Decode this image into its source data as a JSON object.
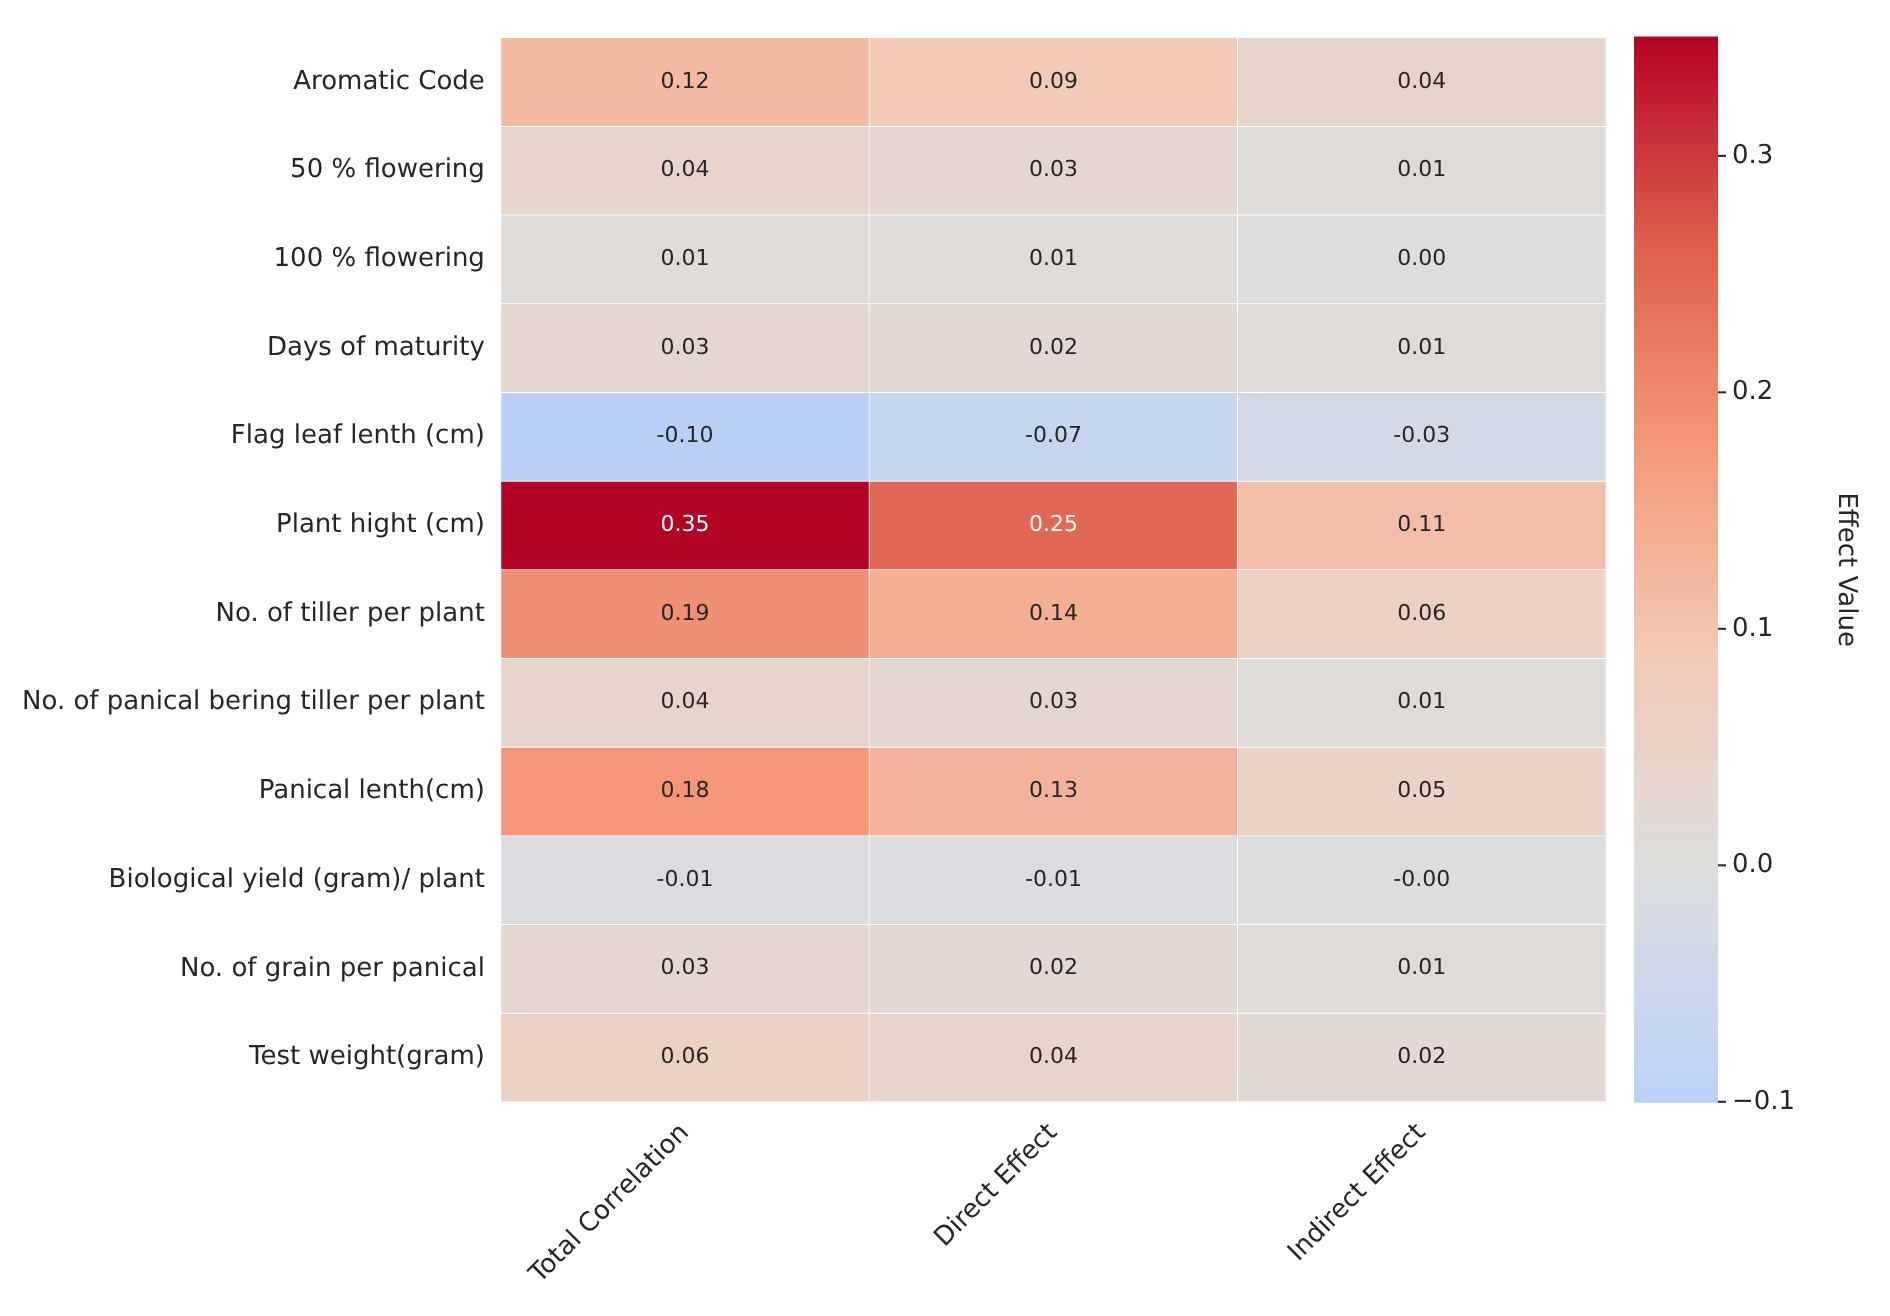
{
  "chart_data": {
    "type": "heatmap",
    "clabel": "Effect Value",
    "categories": [
      "Total Correlation",
      "Direct Effect",
      "Indirect Effect"
    ],
    "y_categories": [
      "Aromatic Code",
      "50 % flowering",
      "100 % flowering",
      "Days of maturity",
      "Flag leaf lenth (cm)",
      "Plant hight (cm)",
      "No. of tiller per plant",
      "No. of panical bering tiller per plant",
      "Panical lenth(cm)",
      "Biological yield (gram)/ plant",
      "No. of grain per panical",
      "Test weight(gram)"
    ],
    "cells": [
      [
        0.12,
        0.09,
        0.04
      ],
      [
        0.04,
        0.03,
        0.01
      ],
      [
        0.01,
        0.01,
        0.0
      ],
      [
        0.03,
        0.02,
        0.01
      ],
      [
        -0.1,
        -0.07,
        -0.03
      ],
      [
        0.35,
        0.25,
        0.11
      ],
      [
        0.19,
        0.14,
        0.06
      ],
      [
        0.04,
        0.03,
        0.01
      ],
      [
        0.18,
        0.13,
        0.05
      ],
      [
        -0.01,
        -0.01,
        0.0
      ],
      [
        0.03,
        0.02,
        0.01
      ],
      [
        0.06,
        0.04,
        0.02
      ]
    ],
    "cell_labels": [
      [
        "0.12",
        "0.09",
        "0.04"
      ],
      [
        "0.04",
        "0.03",
        "0.01"
      ],
      [
        "0.01",
        "0.01",
        "0.00"
      ],
      [
        "0.03",
        "0.02",
        "0.01"
      ],
      [
        "-0.10",
        "-0.07",
        "-0.03"
      ],
      [
        "0.35",
        "0.25",
        "0.11"
      ],
      [
        "0.19",
        "0.14",
        "0.06"
      ],
      [
        "0.04",
        "0.03",
        "0.01"
      ],
      [
        "0.18",
        "0.13",
        "0.05"
      ],
      [
        "-0.01",
        "-0.01",
        "-0.00"
      ],
      [
        "0.03",
        "0.02",
        "0.01"
      ],
      [
        "0.06",
        "0.04",
        "0.02"
      ]
    ],
    "clim": [
      -0.1,
      0.35
    ],
    "cticks": [
      -0.1,
      {
        "value": 0,
        "label": "0.0"
      },
      0.1,
      0.2,
      0.3
    ]
  }
}
